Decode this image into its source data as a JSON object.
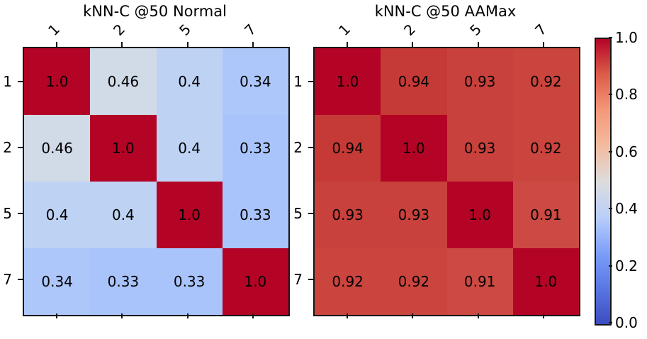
{
  "figure": {
    "background": "#ffffff",
    "axis_color": "#161616",
    "text_color": "#000000",
    "colorbar": {
      "colormap": "coolwarm",
      "ticks": [
        "1.0",
        "0.8",
        "0.6",
        "0.4",
        "0.2",
        "0.0"
      ],
      "vmin": 0.0,
      "vmax": 1.0,
      "gradient_stops": [
        "#b40426",
        "#dc5d4a",
        "#f4987a",
        "#f4bb9f",
        "#dddcdc",
        "#b9cffa",
        "#7c9ff9",
        "#5977e3",
        "#3b4cc0"
      ]
    }
  },
  "chart_data": [
    {
      "type": "heatmap",
      "title": "kNN-C @50 Normal",
      "colormap": "coolwarm",
      "vmin": 0.0,
      "vmax": 1.0,
      "x_labels": [
        "1",
        "2",
        "5",
        "7"
      ],
      "y_labels": [
        "1",
        "2",
        "5",
        "7"
      ],
      "values": [
        [
          1.0,
          0.46,
          0.4,
          0.34
        ],
        [
          0.46,
          1.0,
          0.4,
          0.33
        ],
        [
          0.4,
          0.4,
          1.0,
          0.33
        ],
        [
          0.34,
          0.33,
          0.33,
          1.0
        ]
      ],
      "cell_text": [
        [
          "1.0",
          "0.46",
          "0.4",
          "0.34"
        ],
        [
          "0.46",
          "1.0",
          "0.4",
          "0.33"
        ],
        [
          "0.4",
          "0.4",
          "1.0",
          "0.33"
        ],
        [
          "0.34",
          "0.33",
          "0.33",
          "1.0"
        ]
      ],
      "cell_colors": [
        [
          "#b40426",
          "#d1dae7",
          "#bed3f4",
          "#adc7fb"
        ],
        [
          "#d1dae7",
          "#b40426",
          "#bed3f4",
          "#a9c4fb"
        ],
        [
          "#bed3f4",
          "#bed3f4",
          "#b40426",
          "#a9c4fb"
        ],
        [
          "#adc7fb",
          "#a9c4fb",
          "#a9c4fb",
          "#b40426"
        ]
      ]
    },
    {
      "type": "heatmap",
      "title": "kNN-C @50 AAMax",
      "colormap": "coolwarm",
      "vmin": 0.0,
      "vmax": 1.0,
      "x_labels": [
        "1",
        "2",
        "5",
        "7"
      ],
      "y_labels": [
        "1",
        "2",
        "5",
        "7"
      ],
      "values": [
        [
          1.0,
          0.94,
          0.93,
          0.92
        ],
        [
          0.94,
          1.0,
          0.93,
          0.92
        ],
        [
          0.93,
          0.93,
          1.0,
          0.91
        ],
        [
          0.92,
          0.92,
          0.91,
          1.0
        ]
      ],
      "cell_text": [
        [
          "1.0",
          "0.94",
          "0.93",
          "0.92"
        ],
        [
          "0.94",
          "1.0",
          "0.93",
          "0.92"
        ],
        [
          "0.93",
          "0.93",
          "1.0",
          "0.91"
        ],
        [
          "0.92",
          "0.92",
          "0.91",
          "1.0"
        ]
      ],
      "cell_colors": [
        [
          "#b40426",
          "#c53a36",
          "#c8413c",
          "#ca453e"
        ],
        [
          "#c53a36",
          "#b40426",
          "#c8413c",
          "#ca453e"
        ],
        [
          "#c8413c",
          "#c8413c",
          "#b40426",
          "#cc4a43"
        ],
        [
          "#ca453e",
          "#ca453e",
          "#cc4a43",
          "#b40426"
        ]
      ]
    }
  ]
}
